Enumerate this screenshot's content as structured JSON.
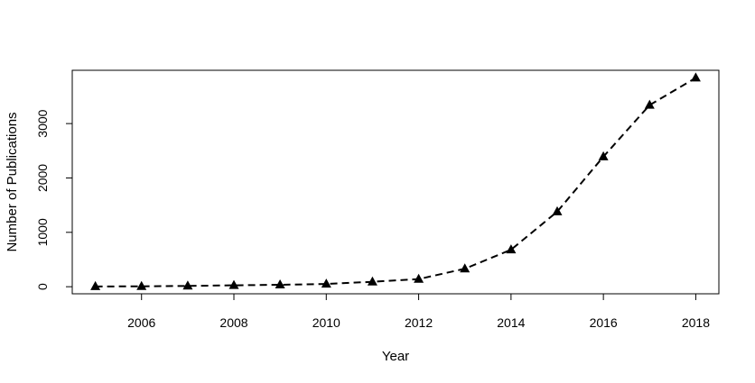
{
  "chart_data": {
    "type": "line",
    "xlabel": "Year",
    "ylabel": "Number of Publications",
    "xlim": [
      2004.5,
      2018.5
    ],
    "ylim": [
      -130,
      3980
    ],
    "x_ticks": [
      2006,
      2008,
      2010,
      2012,
      2014,
      2016,
      2018
    ],
    "y_ticks": [
      0,
      1000,
      2000,
      3000
    ],
    "line_style": "dashed",
    "marker": "filled-triangle",
    "series": [
      {
        "x": [
          2005,
          2006,
          2007,
          2008,
          2009,
          2010,
          2011,
          2012,
          2013,
          2014,
          2015,
          2016,
          2017,
          2018
        ],
        "values": [
          5,
          8,
          15,
          25,
          35,
          50,
          90,
          140,
          330,
          680,
          1380,
          2390,
          3340,
          3840
        ]
      }
    ],
    "grid": false,
    "legend": "none",
    "colors": {
      "line": "#000000",
      "marker": "#000000",
      "frame": "#000000"
    }
  }
}
